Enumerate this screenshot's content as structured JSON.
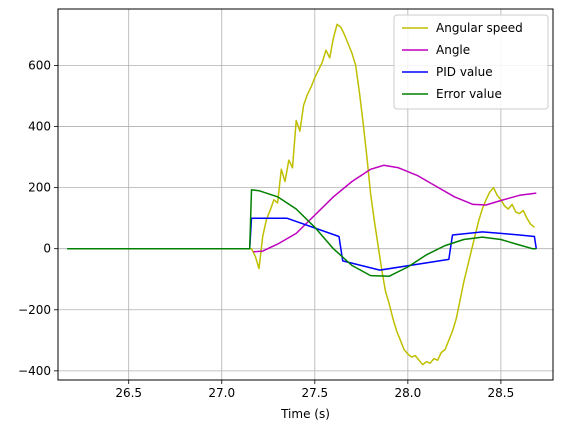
{
  "chart_data": {
    "type": "line",
    "title": "",
    "xlabel": "Time (s)",
    "ylabel": "",
    "xlim": [
      26.12,
      28.78
    ],
    "ylim": [
      -430,
      785
    ],
    "xticks": [
      26.5,
      27.0,
      27.5,
      28.0,
      28.5
    ],
    "yticks": [
      -400,
      -200,
      0,
      200,
      400,
      600
    ],
    "grid": true,
    "legend_position": "top-right",
    "series": [
      {
        "name": "Angular speed",
        "color": "#bfbf00",
        "x": [
          26.17,
          27.16,
          27.18,
          27.2,
          27.22,
          27.24,
          27.26,
          27.28,
          27.3,
          27.32,
          27.34,
          27.36,
          27.38,
          27.4,
          27.42,
          27.44,
          27.46,
          27.48,
          27.5,
          27.52,
          27.54,
          27.56,
          27.58,
          27.6,
          27.62,
          27.64,
          27.66,
          27.68,
          27.7,
          27.72,
          27.74,
          27.76,
          27.78,
          27.8,
          27.82,
          27.84,
          27.86,
          27.88,
          27.9,
          27.92,
          27.94,
          27.96,
          27.98,
          28.0,
          28.02,
          28.04,
          28.06,
          28.08,
          28.1,
          28.12,
          28.14,
          28.16,
          28.18,
          28.2,
          28.22,
          28.24,
          28.26,
          28.28,
          28.3,
          28.32,
          28.34,
          28.36,
          28.38,
          28.4,
          28.42,
          28.44,
          28.46,
          28.48,
          28.5,
          28.52,
          28.54,
          28.56,
          28.58,
          28.6,
          28.62,
          28.64,
          28.66,
          28.68
        ],
        "y": [
          0,
          0,
          -25,
          -65,
          40,
          95,
          125,
          160,
          150,
          260,
          220,
          290,
          265,
          420,
          385,
          470,
          505,
          530,
          560,
          585,
          610,
          650,
          625,
          690,
          735,
          725,
          700,
          670,
          640,
          600,
          510,
          410,
          300,
          180,
          90,
          10,
          -70,
          -140,
          -180,
          -230,
          -270,
          -300,
          -330,
          -345,
          -355,
          -350,
          -365,
          -380,
          -370,
          -375,
          -360,
          -365,
          -340,
          -330,
          -300,
          -270,
          -230,
          -170,
          -110,
          -60,
          -10,
          40,
          90,
          130,
          160,
          185,
          200,
          175,
          160,
          140,
          130,
          145,
          120,
          115,
          125,
          100,
          80,
          70
        ]
      },
      {
        "name": "Angle",
        "color": "#bf00bf",
        "x": [
          27.17,
          27.22,
          27.3,
          27.4,
          27.5,
          27.6,
          27.7,
          27.8,
          27.87,
          27.95,
          28.05,
          28.15,
          28.25,
          28.35,
          28.42,
          28.5,
          28.6,
          28.69
        ],
        "y": [
          -10,
          -8,
          15,
          50,
          110,
          170,
          220,
          260,
          273,
          265,
          240,
          205,
          170,
          145,
          143,
          158,
          175,
          182
        ]
      },
      {
        "name": "PID value",
        "color": "#0000ff",
        "x": [
          26.17,
          27.15,
          27.16,
          27.3,
          27.35,
          27.63,
          27.65,
          27.85,
          28.22,
          28.24,
          28.4,
          28.5,
          28.6,
          28.68,
          28.69
        ],
        "y": [
          0,
          0,
          100,
          100,
          100,
          40,
          -40,
          -70,
          -35,
          45,
          55,
          50,
          45,
          40,
          0
        ]
      },
      {
        "name": "Error value",
        "color": "#008000",
        "x": [
          26.17,
          27.15,
          27.16,
          27.2,
          27.3,
          27.4,
          27.5,
          27.6,
          27.7,
          27.8,
          27.9,
          28.0,
          28.1,
          28.2,
          28.3,
          28.4,
          28.5,
          28.6,
          28.67,
          28.69
        ],
        "y": [
          0,
          0,
          193,
          190,
          170,
          130,
          70,
          0,
          -55,
          -88,
          -90,
          -60,
          -20,
          10,
          30,
          38,
          30,
          12,
          0,
          0
        ]
      }
    ]
  }
}
